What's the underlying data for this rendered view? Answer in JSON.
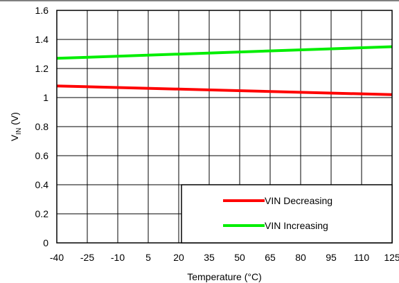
{
  "chart_data": {
    "type": "line",
    "title": "",
    "xlabel": "Temperature (°C)",
    "ylabel": {
      "main": "V",
      "sub": "IN",
      "unit": " (V)"
    },
    "xlim": [
      -40,
      125
    ],
    "ylim": [
      0,
      1.6
    ],
    "x_ticks": [
      "-40",
      "-25",
      "-10",
      "5",
      "20",
      "35",
      "50",
      "65",
      "80",
      "95",
      "110",
      "125"
    ],
    "y_ticks": [
      "0",
      "0.2",
      "0.4",
      "0.6",
      "0.8",
      "1",
      "1.2",
      "1.4",
      "1.6"
    ],
    "grid": true,
    "legend_position": "bottom-right",
    "series": [
      {
        "name": "VIN Decreasing",
        "color": "#ff0000",
        "x": [
          -40,
          125
        ],
        "y": [
          1.08,
          1.02
        ]
      },
      {
        "name": "VIN Increasing",
        "color": "#00ee00",
        "x": [
          -40,
          125
        ],
        "y": [
          1.27,
          1.35
        ]
      }
    ]
  }
}
